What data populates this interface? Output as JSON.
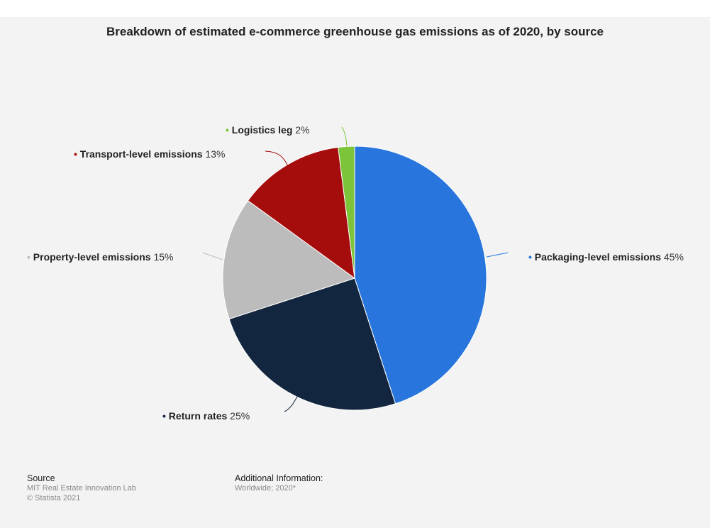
{
  "chart_data": {
    "type": "pie",
    "title": "Breakdown of estimated e-commerce greenhouse gas emissions as of 2020, by source",
    "slices": [
      {
        "name": "Packaging-level emissions",
        "value": 45,
        "value_label": "45%",
        "color": "#2876dd"
      },
      {
        "name": "Return rates",
        "value": 25,
        "value_label": "25%",
        "color": "#13263f"
      },
      {
        "name": "Property-level emissions",
        "value": 15,
        "value_label": "15%",
        "color": "#bcbcbc"
      },
      {
        "name": "Transport-level emissions",
        "value": 13,
        "value_label": "13%",
        "color": "#a50d0d"
      },
      {
        "name": "Logistics leg",
        "value": 2,
        "value_label": "2%",
        "color": "#7cc439"
      }
    ]
  },
  "footer": {
    "source_heading": "Source",
    "source_lines": [
      "MIT Real Estate Innovation Lab",
      "© Statista 2021"
    ],
    "additional_heading": "Additional Information:",
    "additional_lines": [
      "Worldwide; 2020*"
    ]
  }
}
